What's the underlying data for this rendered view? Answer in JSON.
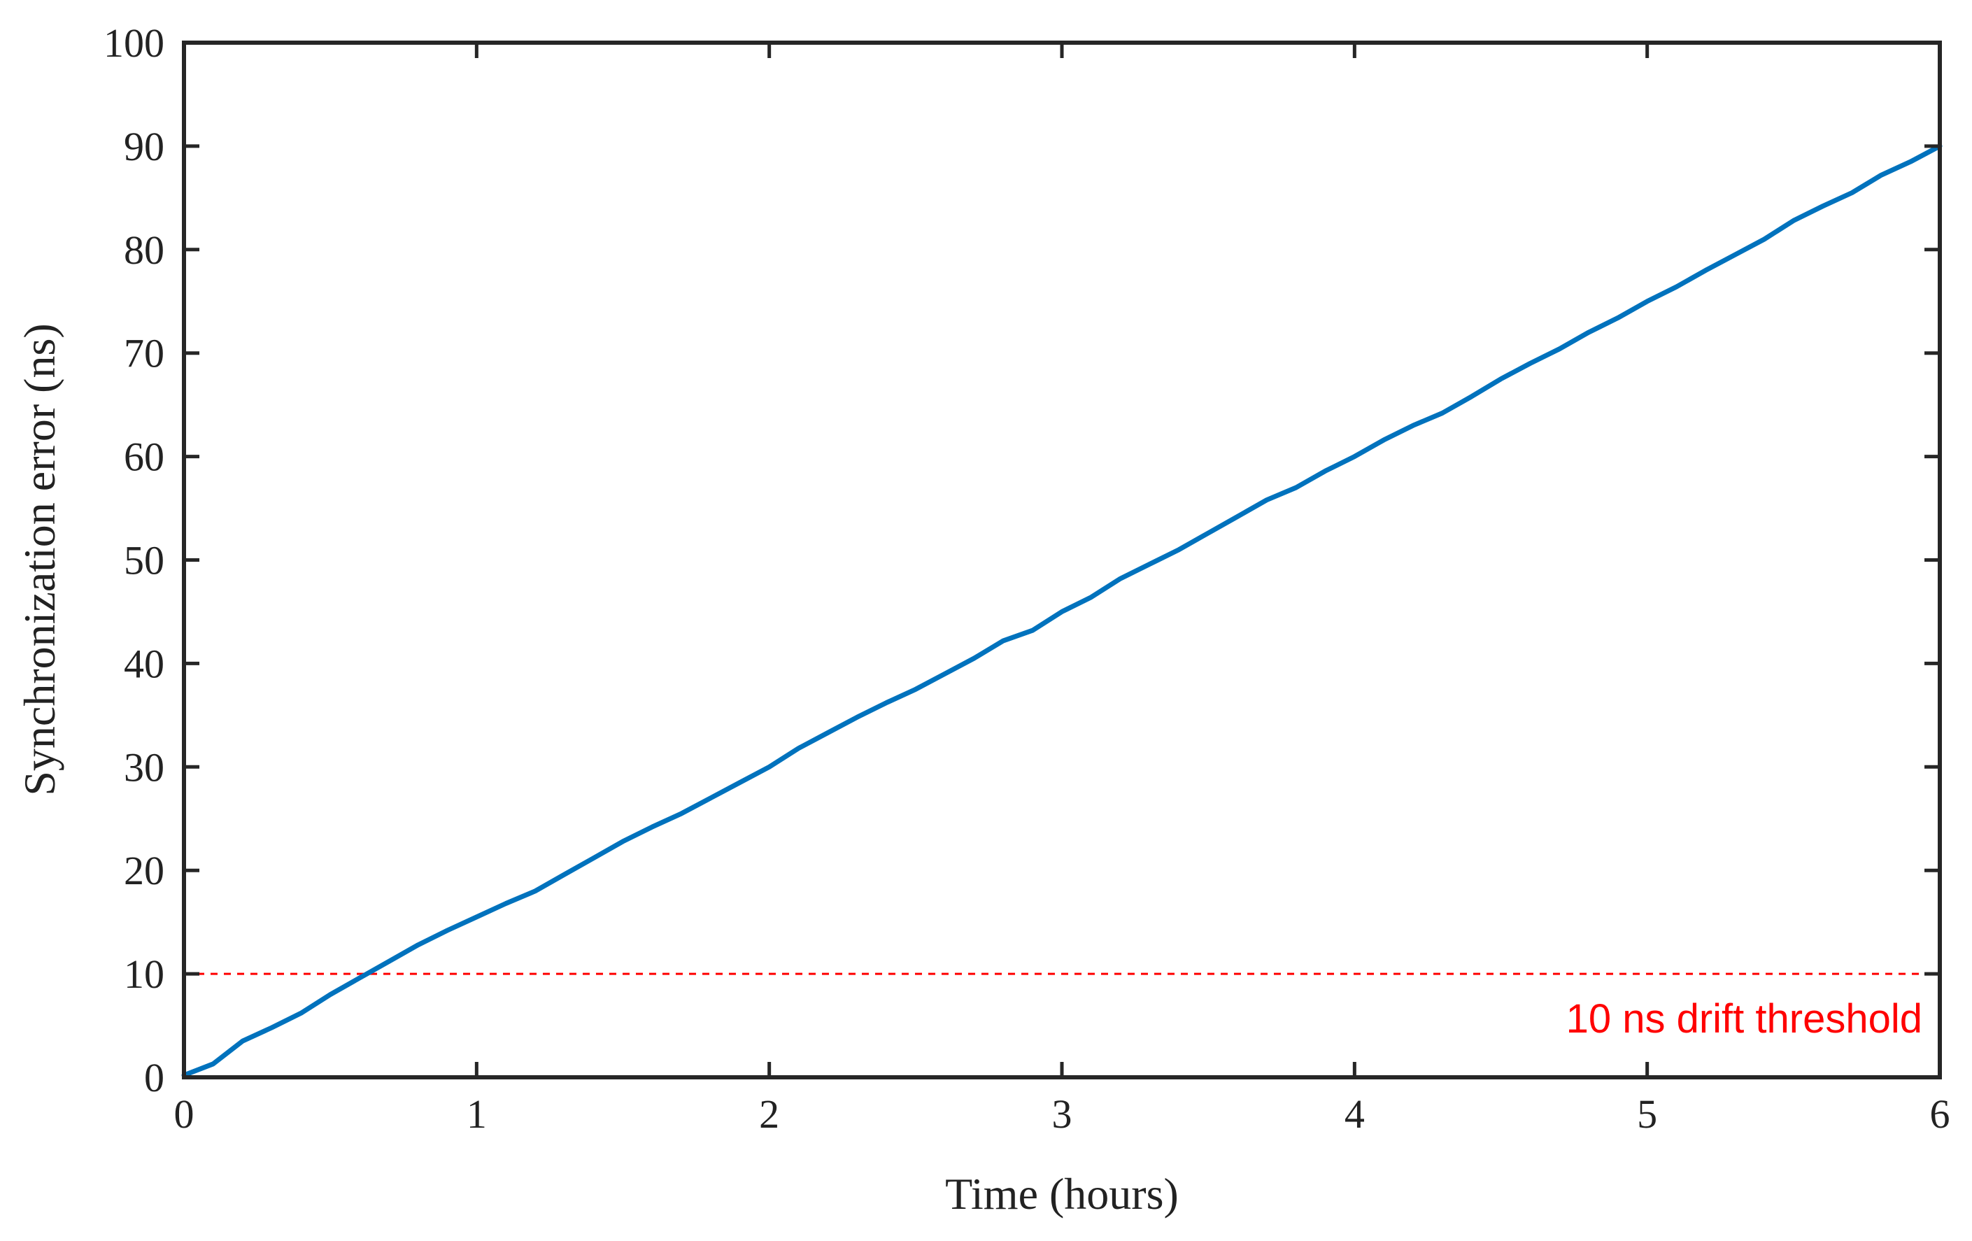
{
  "chart_data": {
    "type": "line",
    "title": "",
    "xlabel": "Time (hours)",
    "ylabel": "Synchronization error (ns)",
    "xlim": [
      0,
      6
    ],
    "ylim": [
      0,
      100
    ],
    "xticks": [
      0,
      1,
      2,
      3,
      4,
      5,
      6
    ],
    "yticks": [
      0,
      10,
      20,
      30,
      40,
      50,
      60,
      70,
      80,
      90,
      100
    ],
    "grid": false,
    "legend": "none",
    "series": [
      {
        "color": "#0072bd",
        "x": [
          0,
          0.1,
          0.2,
          0.3,
          0.4,
          0.5,
          0.6,
          0.7,
          0.8,
          0.9,
          1.0,
          1.1,
          1.2,
          1.3,
          1.4,
          1.5,
          1.6,
          1.7,
          1.8,
          1.9,
          2.0,
          2.1,
          2.2,
          2.3,
          2.4,
          2.5,
          2.6,
          2.7,
          2.8,
          2.9,
          3.0,
          3.1,
          3.2,
          3.3,
          3.4,
          3.5,
          3.6,
          3.7,
          3.8,
          3.9,
          4.0,
          4.1,
          4.2,
          4.3,
          4.4,
          4.5,
          4.6,
          4.7,
          4.8,
          4.9,
          5.0,
          5.1,
          5.2,
          5.3,
          5.4,
          5.5,
          5.6,
          5.7,
          5.8,
          5.9,
          6.0
        ],
        "y": [
          0.2,
          1.3,
          3.5,
          4.8,
          6.2,
          8.0,
          9.6,
          11.2,
          12.8,
          14.2,
          15.5,
          16.8,
          18.0,
          19.6,
          21.2,
          22.8,
          24.2,
          25.5,
          27.0,
          28.5,
          30.0,
          31.8,
          33.3,
          34.8,
          36.2,
          37.5,
          39.0,
          40.5,
          42.2,
          43.2,
          45.0,
          46.4,
          48.2,
          49.6,
          51.0,
          52.6,
          54.2,
          55.8,
          57.0,
          58.6,
          60.0,
          61.6,
          63.0,
          64.2,
          65.8,
          67.5,
          69.0,
          70.4,
          72.0,
          73.4,
          75.0,
          76.4,
          78.0,
          79.5,
          81.0,
          82.8,
          84.2,
          85.5,
          87.2,
          88.5,
          90.0
        ]
      }
    ],
    "threshold": {
      "y": 10,
      "color": "#ff0000",
      "label": "10 ns drift threshold"
    }
  }
}
